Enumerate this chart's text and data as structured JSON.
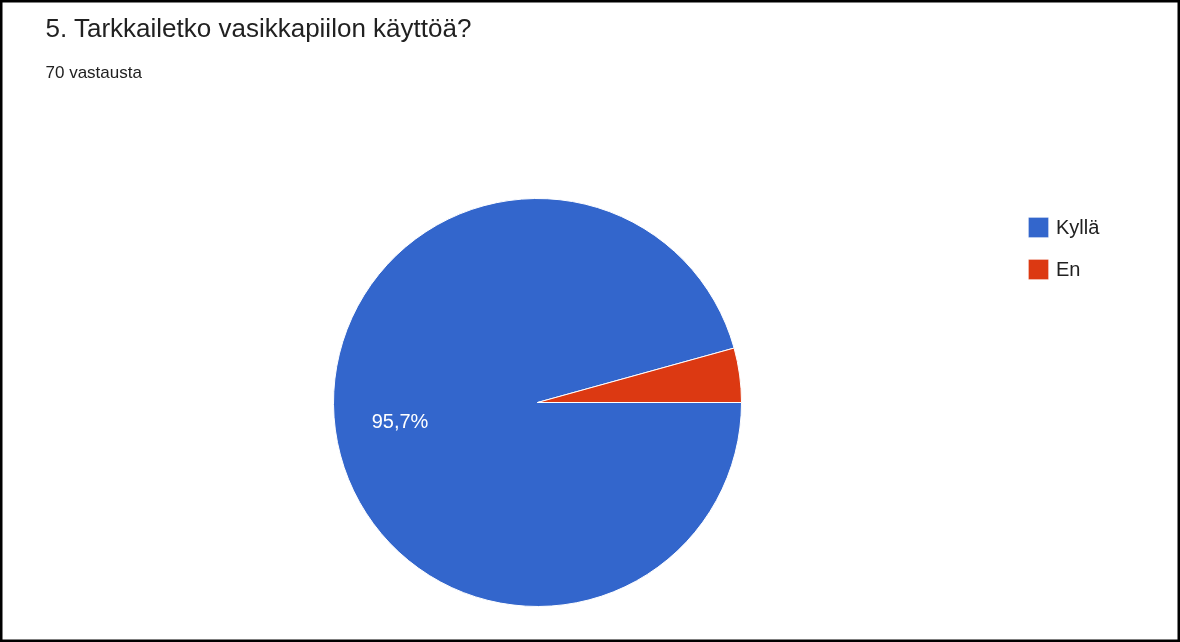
{
  "chart_data": {
    "type": "pie",
    "title": "5. Tarkkailetko vasikkapiilon käyttöä?",
    "subtitle": "70 vastausta",
    "categories": [
      "Kyllä",
      "En"
    ],
    "values": [
      95.7,
      4.3
    ],
    "colors": [
      "#3366cc",
      "#dc3912"
    ],
    "value_labels": [
      "95,7%",
      null
    ],
    "legend": "right"
  }
}
